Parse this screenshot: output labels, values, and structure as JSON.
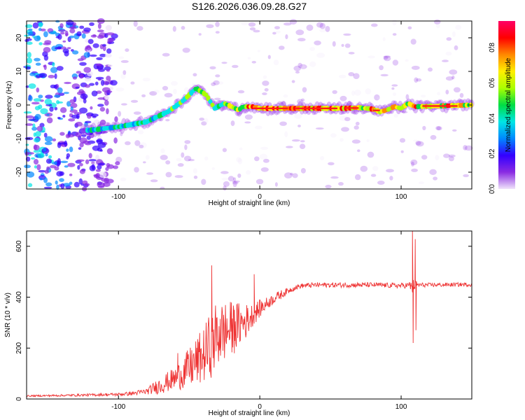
{
  "title": "S126.2026.036.09.28.G27",
  "chart_data": [
    {
      "type": "heatmap",
      "xlabel": "Height of straight line (km)",
      "ylabel": "Frequency (Hz)",
      "xlim": [
        -165,
        150
      ],
      "ylim": [
        -25,
        25
      ],
      "x_ticks": [
        "-100",
        "0",
        "100"
      ],
      "y_ticks": [
        "-20",
        "-10",
        "0",
        "10",
        "20"
      ],
      "colorbar": {
        "label": "Normalized spectral amplitude",
        "range": [
          0.0,
          0.95
        ],
        "ticks": [
          "0.0",
          "0.2",
          "0.4",
          "0.6",
          "0.8"
        ],
        "colors": [
          "#f0e4fa",
          "#8a2be2",
          "#3300ff",
          "#0088ff",
          "#00e5e5",
          "#00dd44",
          "#aaff00",
          "#ffee00",
          "#ff8800",
          "#ff0000",
          "#ff0066"
        ]
      },
      "ridge": {
        "x": [
          -120,
          -100,
          -80,
          -65,
          -55,
          -45,
          -38,
          -32,
          -25,
          -20,
          -15,
          -12,
          -5,
          0,
          20,
          40,
          60,
          70,
          80,
          85,
          90,
          95,
          100,
          105,
          110,
          150
        ],
        "freq": [
          -7.5,
          -6.5,
          -5,
          -2,
          1,
          5,
          3,
          -1,
          0.5,
          -0.5,
          -1.5,
          -0.5,
          -0.5,
          -1,
          -1,
          -1,
          -1,
          -0.8,
          -1.2,
          -2,
          -1.5,
          -0.5,
          -1,
          0.5,
          -0.5,
          0
        ]
      }
    },
    {
      "type": "line",
      "xlabel": "Height of straight line (km)",
      "ylabel": "SNR (10 * v/v)",
      "xlim": [
        -165,
        150
      ],
      "ylim": [
        0,
        660
      ],
      "x_ticks": [
        "-100",
        "0",
        "100"
      ],
      "y_ticks": [
        "0",
        "200",
        "400",
        "600"
      ],
      "series": [
        {
          "name": "SNR",
          "color": "#ee3333",
          "x": [
            -165,
            -140,
            -120,
            -100,
            -90,
            -80,
            -70,
            -60,
            -50,
            -40,
            -35,
            -30,
            -25,
            -20,
            -15,
            -10,
            -5,
            0,
            5,
            10,
            15,
            20,
            25,
            30,
            40,
            60,
            80,
            100,
            105,
            108,
            110,
            112,
            120,
            150
          ],
          "base": [
            12,
            14,
            16,
            18,
            22,
            30,
            55,
            80,
            120,
            170,
            210,
            250,
            265,
            275,
            290,
            305,
            330,
            355,
            375,
            395,
            410,
            425,
            438,
            445,
            448,
            448,
            448,
            445,
            447,
            440,
            450,
            448,
            448,
            450
          ],
          "amp": [
            3,
            4,
            5,
            6,
            8,
            12,
            35,
            45,
            80,
            110,
            130,
            140,
            120,
            110,
            90,
            70,
            45,
            35,
            25,
            20,
            18,
            12,
            10,
            10,
            10,
            10,
            10,
            10,
            12,
            30,
            20,
            10,
            8,
            8
          ]
        }
      ],
      "peaks": [
        {
          "x": -58,
          "y": 180
        },
        {
          "x": -34,
          "y": 525
        },
        {
          "x": -28,
          "y": 315
        },
        {
          "x": -18,
          "y": 350
        },
        {
          "x": -4,
          "y": 490
        },
        {
          "x": 108,
          "y": 660
        },
        {
          "x": 108.5,
          "y": 220
        },
        {
          "x": 110,
          "y": 628
        },
        {
          "x": 110.5,
          "y": 270
        }
      ]
    }
  ]
}
